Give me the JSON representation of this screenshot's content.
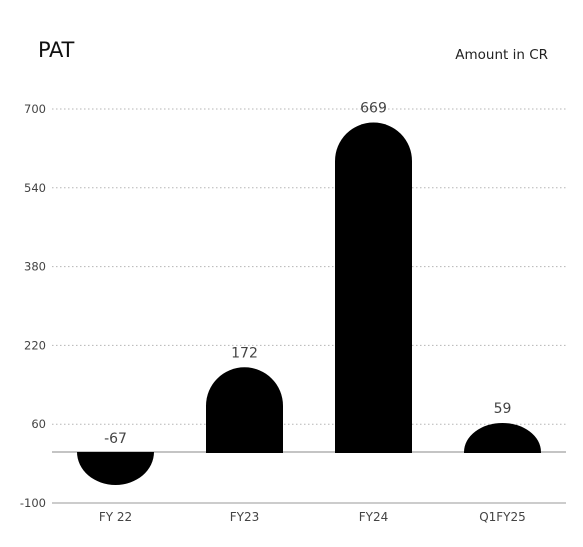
{
  "chart_data": {
    "type": "bar",
    "title": "PAT",
    "unit_label": "Amount in CR",
    "categories": [
      "FY 22",
      "FY23",
      "FY24",
      "Q1FY25"
    ],
    "values": [
      -67,
      172,
      669,
      59
    ],
    "data_labels": [
      "-67",
      "172",
      "669",
      "59"
    ],
    "ylim": [
      -100,
      700
    ],
    "yticks": [
      700,
      540,
      380,
      220,
      60,
      -100
    ],
    "grid": true,
    "bar_color": "#000000",
    "bar_style": "rounded-end"
  }
}
